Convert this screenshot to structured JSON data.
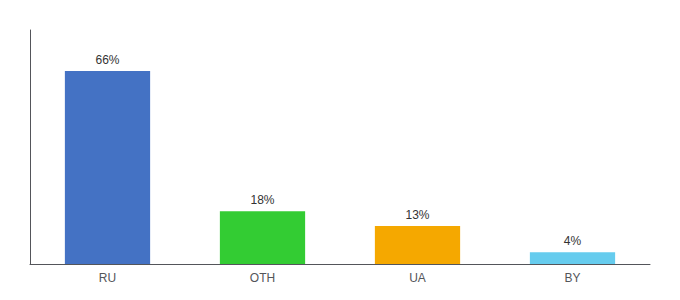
{
  "chart_data": {
    "type": "bar",
    "categories": [
      "RU",
      "OTH",
      "UA",
      "BY"
    ],
    "values": [
      66,
      18,
      13,
      4
    ],
    "value_labels": [
      "66%",
      "18%",
      "13%",
      "4%"
    ],
    "colors": [
      "#4472c4",
      "#33cc33",
      "#f5a800",
      "#66ccee"
    ],
    "ylim": [
      0,
      80
    ],
    "yticks": [],
    "grid": false,
    "data_labels": true,
    "tick_labels": "x"
  }
}
